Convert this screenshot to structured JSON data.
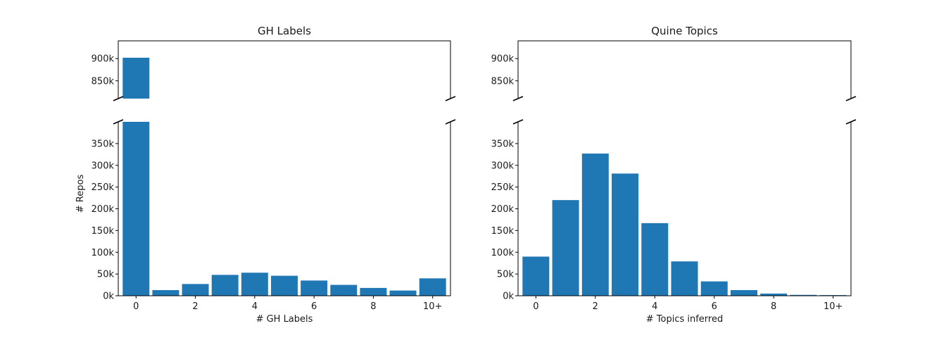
{
  "chart_data": [
    {
      "type": "bar",
      "title": "GH Labels",
      "xlabel": "# GH Labels",
      "ylabel": "# Repos",
      "categories": [
        "0",
        "1",
        "2",
        "3",
        "4",
        "5",
        "6",
        "7",
        "8",
        "9",
        "10+"
      ],
      "x_tick_labels": [
        "0",
        "2",
        "4",
        "6",
        "8",
        "10+"
      ],
      "values": [
        902000,
        13000,
        27000,
        48000,
        53000,
        46000,
        35000,
        25000,
        18000,
        12000,
        40000
      ],
      "broken_axis": true,
      "ylim_top": [
        810000,
        940000
      ],
      "ylim_bottom": [
        0,
        400000
      ],
      "y_ticks_top": [
        "850k",
        "900k"
      ],
      "y_ticks_bottom": [
        "0k",
        "50k",
        "100k",
        "150k",
        "200k",
        "250k",
        "300k",
        "350k"
      ],
      "grid": false,
      "color": "#1f77b4"
    },
    {
      "type": "bar",
      "title": "Quine Topics",
      "xlabel": "# Topics inferred",
      "ylabel": "",
      "categories": [
        "0",
        "1",
        "2",
        "3",
        "4",
        "5",
        "6",
        "7",
        "8",
        "9",
        "10+"
      ],
      "x_tick_labels": [
        "0",
        "2",
        "4",
        "6",
        "8",
        "10+"
      ],
      "values": [
        90000,
        220000,
        327000,
        281000,
        167000,
        79000,
        33000,
        13000,
        5000,
        2000,
        1500
      ],
      "broken_axis": true,
      "ylim_top": [
        810000,
        940000
      ],
      "ylim_bottom": [
        0,
        400000
      ],
      "y_ticks_top": [
        "850k",
        "900k"
      ],
      "y_ticks_bottom": [
        "0k",
        "50k",
        "100k",
        "150k",
        "200k",
        "250k",
        "300k",
        "350k"
      ],
      "grid": false,
      "color": "#1f77b4"
    }
  ]
}
